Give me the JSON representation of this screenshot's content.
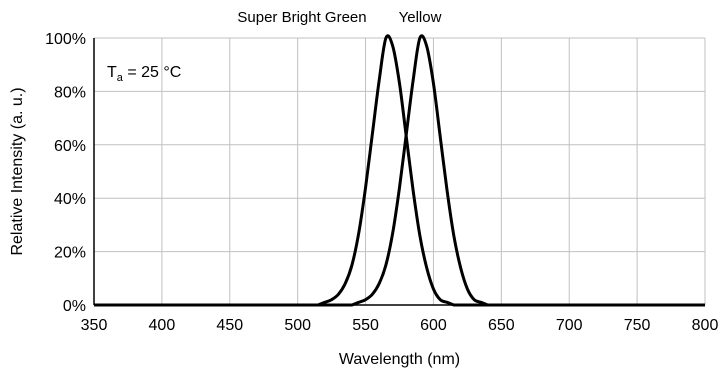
{
  "chart_data": {
    "type": "line",
    "xlabel": "Wavelength (nm)",
    "ylabel": "Relative Intensity (a. u.)",
    "xlim": [
      350,
      800
    ],
    "ylim": [
      0,
      100
    ],
    "x_ticks": [
      "350",
      "400",
      "450",
      "500",
      "550",
      "600",
      "650",
      "700",
      "750",
      "800"
    ],
    "y_ticks": [
      "0%",
      "20%",
      "40%",
      "60%",
      "80%",
      "100%"
    ],
    "grid": true,
    "annotation": {
      "main": "T",
      "sub": "a",
      "rest": " = 25 °C"
    },
    "series": [
      {
        "name": "Super Bright Green",
        "x": [
          515,
          520,
          525,
          530,
          535,
          540,
          545,
          550,
          555,
          560,
          565,
          570,
          575,
          580,
          585,
          590,
          595,
          600,
          605,
          610,
          615
        ],
        "values": [
          0,
          1,
          2,
          4,
          8,
          15,
          27,
          44,
          64,
          84,
          100,
          97,
          83,
          63,
          43,
          26,
          14,
          6,
          2,
          1,
          0
        ]
      },
      {
        "name": "Yellow",
        "x": [
          540,
          545,
          550,
          555,
          560,
          565,
          570,
          575,
          580,
          585,
          590,
          595,
          600,
          605,
          610,
          615,
          620,
          625,
          630,
          635,
          640
        ],
        "values": [
          0,
          1,
          2,
          4,
          8,
          15,
          27,
          44,
          64,
          84,
          100,
          97,
          83,
          63,
          43,
          26,
          14,
          6,
          2,
          1,
          0
        ]
      }
    ],
    "colors": {
      "line": "#000000",
      "grid": "#c0c0c0",
      "axis": "#000000"
    }
  }
}
